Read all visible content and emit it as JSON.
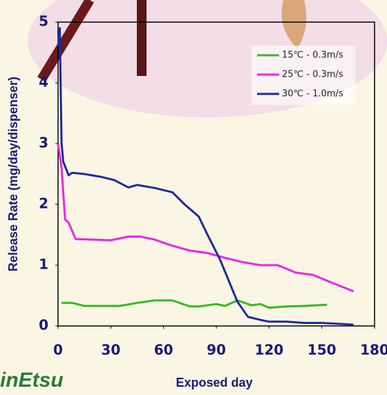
{
  "chart_data": {
    "type": "line",
    "y_label": "Release Rate (mg/day/dispenser)",
    "x_label": "Exposed day",
    "logo": "inEtsu",
    "xlim": [
      0,
      180
    ],
    "xticks": [
      0,
      30,
      60,
      90,
      120,
      150,
      180
    ],
    "ylim": [
      0,
      5
    ],
    "yticks": [
      0,
      1,
      2,
      3,
      4,
      5
    ],
    "legend": "upper right",
    "series": [
      {
        "name": "15℃ - 0.3m/s",
        "color": "#33bb22",
        "x": [
          2,
          8,
          15,
          35,
          45,
          55,
          65,
          75,
          80,
          90,
          95,
          102,
          110,
          115,
          120,
          130,
          140,
          153
        ],
        "values": [
          0.38,
          0.38,
          0.33,
          0.33,
          0.38,
          0.42,
          0.42,
          0.32,
          0.32,
          0.36,
          0.33,
          0.42,
          0.34,
          0.36,
          0.3,
          0.32,
          0.33,
          0.35
        ]
      },
      {
        "name": "25℃ - 0.3m/s",
        "color": "#ee22ee",
        "x": [
          0,
          2,
          4,
          6,
          10,
          20,
          30,
          40,
          47,
          55,
          65,
          75,
          85,
          95,
          105,
          115,
          125,
          135,
          145,
          155,
          168
        ],
        "values": [
          3.0,
          2.6,
          1.75,
          1.7,
          1.43,
          1.42,
          1.41,
          1.47,
          1.47,
          1.42,
          1.32,
          1.24,
          1.2,
          1.12,
          1.05,
          1.0,
          1.0,
          0.88,
          0.84,
          0.72,
          0.57
        ]
      },
      {
        "name": "30℃ - 1.0m/s",
        "color": "#1a2aa0",
        "x": [
          0,
          1,
          2,
          3,
          6,
          8,
          15,
          25,
          32,
          40,
          45,
          55,
          65,
          72,
          80,
          85,
          92,
          97,
          102,
          108,
          115,
          120,
          130,
          140,
          150,
          168
        ],
        "values": [
          4.6,
          4.9,
          3.0,
          2.7,
          2.48,
          2.52,
          2.5,
          2.45,
          2.4,
          2.28,
          2.32,
          2.27,
          2.2,
          2.0,
          1.8,
          1.5,
          1.1,
          0.75,
          0.4,
          0.15,
          0.1,
          0.07,
          0.07,
          0.05,
          0.05,
          0.02
        ]
      }
    ]
  }
}
